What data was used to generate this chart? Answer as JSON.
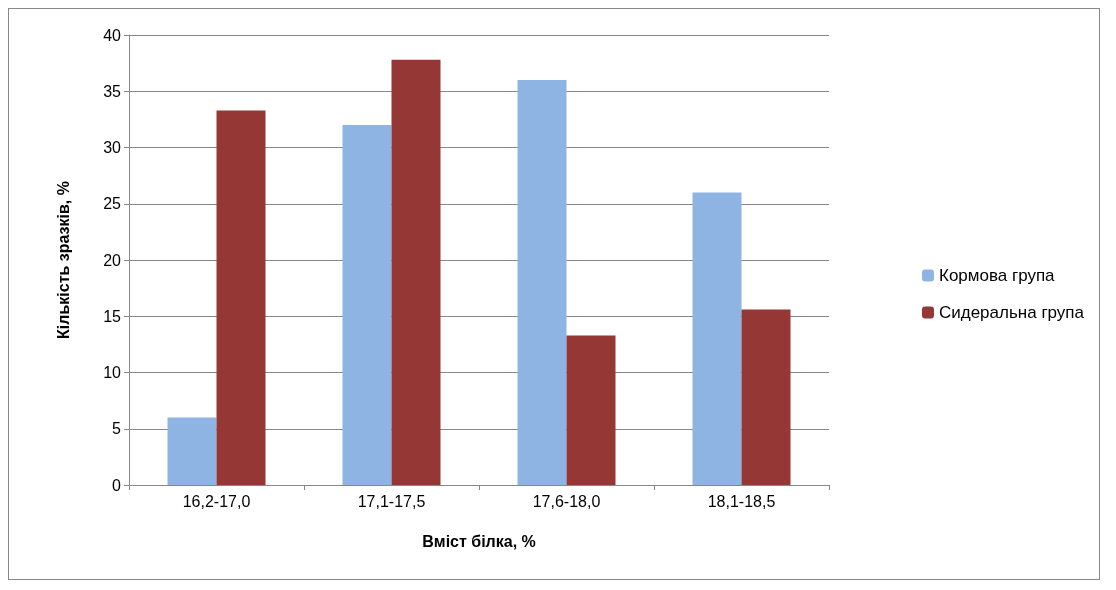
{
  "chart_data": {
    "type": "bar",
    "xlabel": "Вміст білка, %",
    "ylabel": "Кількість зразків, %",
    "categories": [
      "16,2-17,0",
      "17,1-17,5",
      "17,6-18,0",
      "18,1-18,5"
    ],
    "series": [
      {
        "name": "Кормова група",
        "color": "#8eb4e3",
        "values": [
          6,
          32,
          36,
          26
        ]
      },
      {
        "name": "Сидеральна група",
        "color": "#953735",
        "values": [
          33.3,
          37.8,
          13.3,
          15.6
        ]
      }
    ],
    "ylim": [
      0,
      40
    ],
    "yticks": [
      0,
      5,
      10,
      15,
      20,
      25,
      30,
      35,
      40
    ],
    "grid": "y",
    "legend": "right"
  }
}
